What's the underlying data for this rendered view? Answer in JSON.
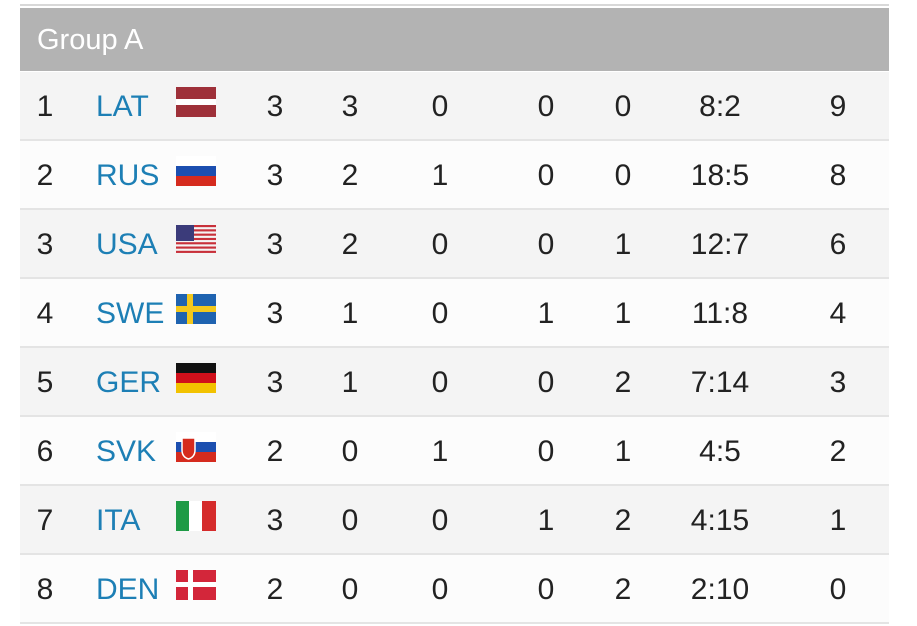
{
  "header": {
    "title": "Group A"
  },
  "table": {
    "rows": [
      [
        1,
        "LAT",
        3,
        3,
        0,
        0,
        0,
        "8:2",
        9
      ],
      [
        2,
        "RUS",
        3,
        2,
        1,
        0,
        0,
        "18:5",
        8
      ],
      [
        3,
        "USA",
        3,
        2,
        0,
        0,
        1,
        "12:7",
        6
      ],
      [
        4,
        "SWE",
        3,
        1,
        0,
        1,
        1,
        "11:8",
        4
      ],
      [
        5,
        "GER",
        3,
        1,
        0,
        0,
        2,
        "7:14",
        3
      ],
      [
        6,
        "SVK",
        2,
        0,
        1,
        0,
        1,
        "4:5",
        2
      ],
      [
        7,
        "ITA",
        3,
        0,
        0,
        1,
        2,
        "4:15",
        1
      ],
      [
        8,
        "DEN",
        2,
        0,
        0,
        0,
        2,
        "2:10",
        0
      ]
    ]
  }
}
